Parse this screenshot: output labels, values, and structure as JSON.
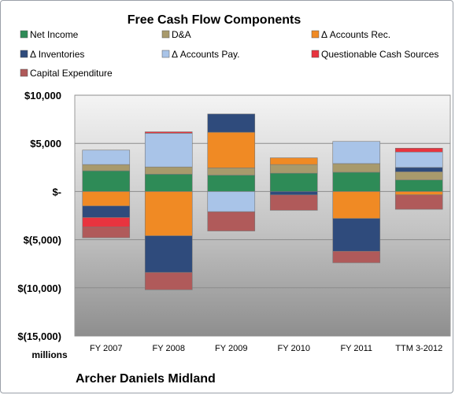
{
  "chart_data": {
    "type": "bar",
    "stacked": true,
    "title": "Free Cash Flow Components",
    "ylabel": "millions",
    "company": "Archer Daniels Midland",
    "categories": [
      "FY 2007",
      "FY 2008",
      "FY 2009",
      "FY 2010",
      "FY 2011",
      "TTM 3-2012"
    ],
    "ylim": [
      -15000,
      10000
    ],
    "yticks": [
      10000,
      5000,
      0,
      -5000,
      -10000,
      -15000
    ],
    "ytick_labels": [
      "$10,000",
      "$5,000",
      "$-",
      "$(5,000)",
      "$(10,000)",
      "$(15,000)"
    ],
    "grid": true,
    "legend_position": "top",
    "series": [
      {
        "name": "Net Income",
        "color": "#2e8b57",
        "values": [
          2150,
          1800,
          1700,
          1900,
          2000,
          1200
        ]
      },
      {
        "name": "D&A",
        "color": "#a89a6c",
        "values": [
          650,
          750,
          750,
          900,
          900,
          850
        ]
      },
      {
        "name": "Δ Accounts Rec.",
        "color": "#f08a24",
        "values": [
          -1500,
          -4600,
          3700,
          700,
          -2800,
          -350
        ]
      },
      {
        "name": "Δ Inventories",
        "color": "#2f4b7c",
        "values": [
          -1200,
          -3800,
          1900,
          -350,
          -3400,
          450
        ]
      },
      {
        "name": "Δ Accounts Pay.",
        "color": "#a9c4e8",
        "values": [
          1500,
          3500,
          -2100,
          0,
          2300,
          1600
        ]
      },
      {
        "name": "Questionable Cash Sources",
        "color": "#e8343f",
        "values": [
          -1000,
          150,
          0,
          0,
          0,
          400
        ]
      },
      {
        "name": "Capital Expenditure",
        "color": "#b05a5a",
        "values": [
          -1100,
          -1800,
          -2000,
          -1600,
          -1200,
          -1500
        ]
      }
    ]
  }
}
